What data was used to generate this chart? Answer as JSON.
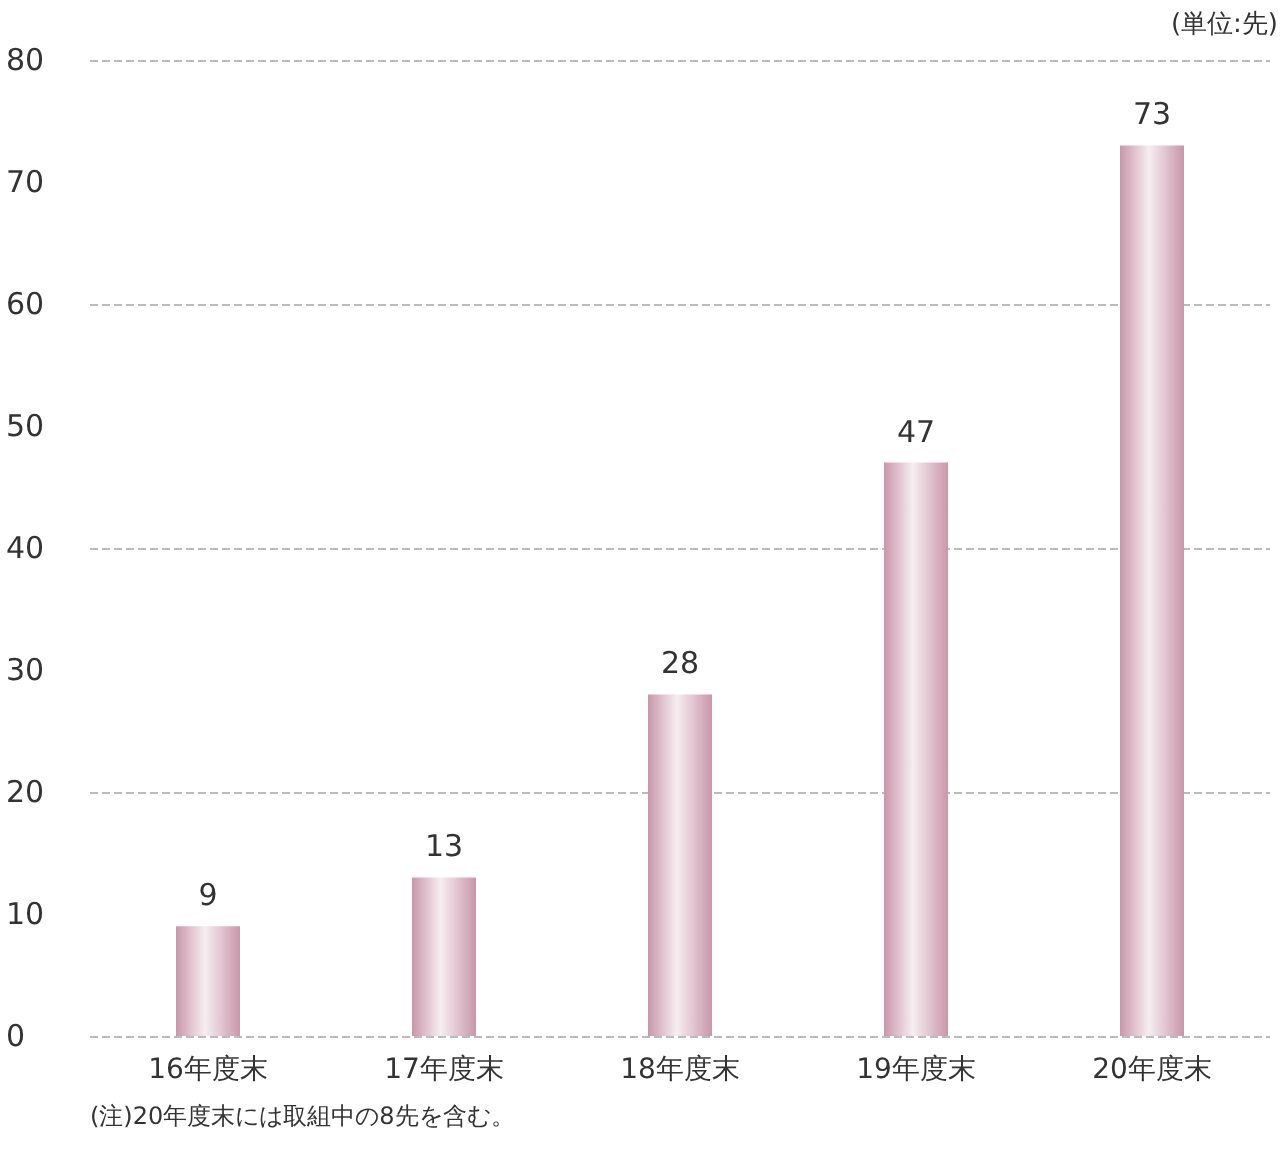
{
  "chart_data": {
    "type": "bar",
    "categories": [
      "16年度末",
      "17年度末",
      "18年度末",
      "19年度末",
      "20年度末"
    ],
    "values": [
      9,
      13,
      28,
      47,
      73
    ],
    "color": "#c996aa",
    "ylim": [
      0,
      80
    ],
    "yticks": [
      0,
      10,
      20,
      30,
      40,
      50,
      60,
      70,
      80
    ],
    "grid": "y",
    "data_labels": true,
    "annotations": [
      "(単位:先)",
      "(注)20年度末には取組中の8先を含む。"
    ]
  }
}
